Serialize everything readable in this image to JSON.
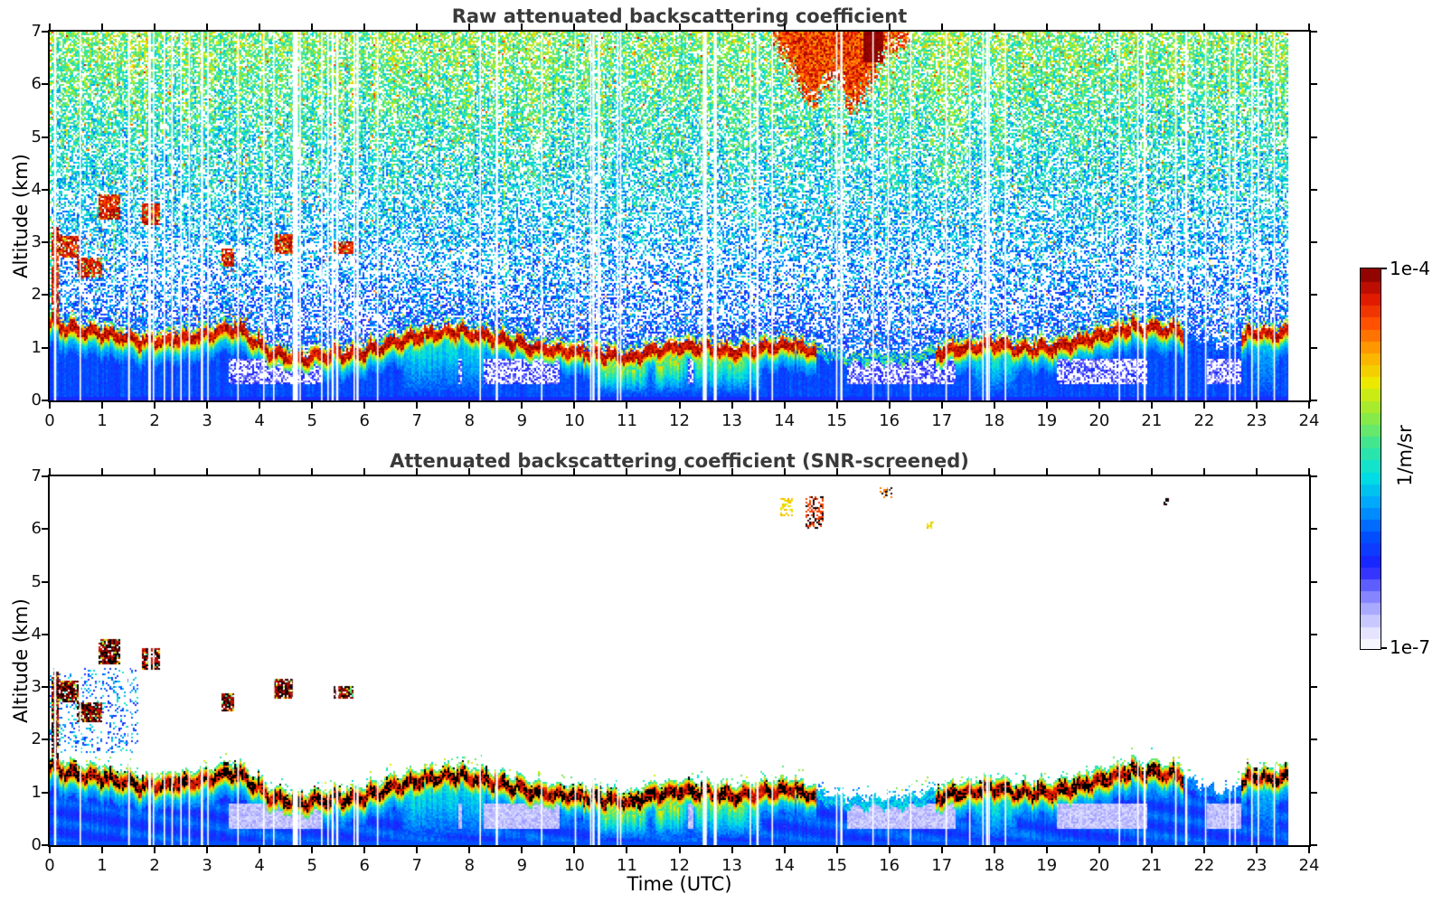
{
  "figure": {
    "background": "#ffffff",
    "title_color": "#3a3a3a",
    "axis_color": "#000000"
  },
  "colorbar": {
    "label": "1/m/sr",
    "tick_top": "1e-4",
    "tick_bottom": "1e-7",
    "n_steps": 32,
    "scale": "log",
    "colormap_stops": [
      [
        0.0,
        "#ffffff"
      ],
      [
        0.05,
        "#e2e2ff"
      ],
      [
        0.1,
        "#b4b4ff"
      ],
      [
        0.16,
        "#6e6eff"
      ],
      [
        0.22,
        "#1e1eff"
      ],
      [
        0.3,
        "#0050ff"
      ],
      [
        0.38,
        "#00a0ff"
      ],
      [
        0.46,
        "#00e1e1"
      ],
      [
        0.54,
        "#3ce696"
      ],
      [
        0.62,
        "#91eb3c"
      ],
      [
        0.7,
        "#ebeb00"
      ],
      [
        0.78,
        "#ffaa00"
      ],
      [
        0.86,
        "#ff5000"
      ],
      [
        0.93,
        "#dc1400"
      ],
      [
        1.0,
        "#7d0000"
      ]
    ]
  },
  "chart_data": [
    {
      "type": "heatmap",
      "title": "Raw attenuated backscattering coefficient",
      "ylabel": "Altitude (km)",
      "xlabel": "",
      "xlim": [
        0,
        24
      ],
      "ylim": [
        0,
        7
      ],
      "x_ticks": [
        0,
        1,
        2,
        3,
        4,
        5,
        6,
        7,
        8,
        9,
        10,
        11,
        12,
        13,
        14,
        15,
        16,
        17,
        18,
        19,
        20,
        21,
        22,
        23,
        24
      ],
      "y_ticks": [
        0,
        1,
        2,
        3,
        4,
        5,
        6,
        7
      ],
      "value_min": "1e-7",
      "value_max": "1e-4",
      "units": "1/m/sr",
      "screened": false,
      "data_ends_at_utc": 23.62
    },
    {
      "type": "heatmap",
      "title": "Attenuated backscattering coefficient (SNR-screened)",
      "ylabel": "Altitude (km)",
      "xlabel": "Time (UTC)",
      "xlim": [
        0,
        24
      ],
      "ylim": [
        0,
        7
      ],
      "x_ticks": [
        0,
        1,
        2,
        3,
        4,
        5,
        6,
        7,
        8,
        9,
        10,
        11,
        12,
        13,
        14,
        15,
        16,
        17,
        18,
        19,
        20,
        21,
        22,
        23,
        24
      ],
      "y_ticks": [
        0,
        1,
        2,
        3,
        4,
        5,
        6,
        7
      ],
      "value_min": "1e-7",
      "value_max": "1e-4",
      "units": "1/m/sr",
      "screened": true,
      "data_ends_at_utc": 23.62
    }
  ],
  "scene": {
    "t_end_utc": 23.62,
    "boundary_layer_height_km": [
      [
        0,
        1.5
      ],
      [
        0.3,
        1.35
      ],
      [
        0.8,
        1.28
      ],
      [
        1.2,
        1.22
      ],
      [
        1.7,
        1.12
      ],
      [
        2.1,
        1.1
      ],
      [
        2.6,
        1.16
      ],
      [
        3.0,
        1.22
      ],
      [
        3.35,
        1.34
      ],
      [
        3.7,
        1.28
      ],
      [
        4.0,
        1.0
      ],
      [
        4.3,
        0.85
      ],
      [
        4.8,
        0.8
      ],
      [
        5.4,
        0.82
      ],
      [
        6.0,
        0.9
      ],
      [
        6.6,
        1.08
      ],
      [
        7.1,
        1.22
      ],
      [
        7.6,
        1.3
      ],
      [
        8.1,
        1.24
      ],
      [
        8.6,
        1.14
      ],
      [
        9.1,
        1.02
      ],
      [
        9.6,
        0.95
      ],
      [
        10.1,
        0.9
      ],
      [
        10.6,
        0.84
      ],
      [
        11.1,
        0.8
      ],
      [
        11.6,
        0.95
      ],
      [
        12.1,
        1.0
      ],
      [
        12.6,
        0.95
      ],
      [
        13.1,
        0.9
      ],
      [
        13.6,
        1.0
      ],
      [
        14.1,
        1.04
      ],
      [
        14.6,
        0.92
      ],
      [
        15.1,
        0.82
      ],
      [
        15.6,
        0.8
      ],
      [
        16.1,
        0.8
      ],
      [
        16.6,
        0.86
      ],
      [
        17.1,
        0.92
      ],
      [
        17.6,
        1.0
      ],
      [
        18.1,
        1.05
      ],
      [
        18.6,
        0.96
      ],
      [
        19.1,
        1.0
      ],
      [
        19.6,
        1.1
      ],
      [
        20.1,
        1.22
      ],
      [
        20.5,
        1.35
      ],
      [
        21.0,
        1.36
      ],
      [
        21.5,
        1.3
      ],
      [
        22.0,
        0.98
      ],
      [
        22.5,
        0.92
      ],
      [
        22.9,
        1.3
      ],
      [
        23.3,
        1.22
      ],
      [
        23.62,
        1.28
      ]
    ],
    "cap_gaps": [
      [
        14.6,
        16.9,
        0.25
      ],
      [
        21.62,
        22.72,
        0.05
      ]
    ],
    "aerosol_layers": [
      {
        "t": [
          0.02,
          0.18
        ],
        "z": [
          1.6,
          3.3
        ],
        "intensity": 1.0
      },
      {
        "t": [
          0.18,
          0.55
        ],
        "z": [
          2.7,
          3.12
        ],
        "intensity": 1.0
      },
      {
        "t": [
          0.5,
          1.0
        ],
        "z": [
          2.32,
          2.72
        ],
        "intensity": 0.95
      },
      {
        "t": [
          0.92,
          1.35
        ],
        "z": [
          3.42,
          3.9
        ],
        "intensity": 0.95
      },
      {
        "t": [
          1.75,
          2.1
        ],
        "z": [
          3.32,
          3.75
        ],
        "intensity": 1.0
      },
      {
        "t": [
          3.28,
          3.52
        ],
        "z": [
          2.55,
          2.88
        ],
        "intensity": 0.85
      },
      {
        "t": [
          4.28,
          4.68
        ],
        "z": [
          2.78,
          3.15
        ],
        "intensity": 0.9
      },
      {
        "t": [
          5.42,
          5.8
        ],
        "z": [
          2.78,
          3.02
        ],
        "intensity": 1.0
      }
    ],
    "cloud": {
      "t": [
        13.75,
        16.45
      ],
      "z_top": 7.0,
      "z_bottom_min": 5.9,
      "peaks": [
        14.55,
        15.35
      ],
      "dark_core": {
        "t": [
          15.5,
          15.9
        ],
        "z": [
          6.4,
          7.0
        ]
      }
    },
    "snr_specks": [
      {
        "t": [
          13.92,
          14.15
        ],
        "z": [
          6.25,
          6.58
        ],
        "style": "yellow"
      },
      {
        "t": [
          14.42,
          14.75
        ],
        "z": [
          6.0,
          6.62
        ],
        "style": "red-black"
      },
      {
        "t": [
          15.82,
          16.05
        ],
        "z": [
          6.58,
          6.78
        ],
        "style": "black-red"
      },
      {
        "t": [
          16.72,
          16.85
        ],
        "z": [
          6.02,
          6.14
        ],
        "style": "yellow"
      },
      {
        "t": [
          21.18,
          21.32
        ],
        "z": [
          6.4,
          6.6
        ],
        "style": "black"
      }
    ],
    "updraft_plumes": [
      [
        6.7,
        8.4,
        0.5
      ],
      [
        10.35,
        11.45,
        0.85
      ],
      [
        11.45,
        12.2,
        1.0
      ],
      [
        12.2,
        13.6,
        0.75
      ],
      [
        17.55,
        18.45,
        0.5
      ],
      [
        22.85,
        23.45,
        0.35
      ]
    ],
    "clear_air_pockets": [
      [
        3.4,
        5.2
      ],
      [
        7.4,
        9.7
      ],
      [
        12.0,
        13.3
      ],
      [
        15.2,
        17.25
      ],
      [
        19.2,
        20.9
      ],
      [
        22.05,
        22.7
      ]
    ],
    "gap_stripes": [
      [
        0.05,
        5.5,
        26
      ],
      [
        5.5,
        10.3,
        8
      ],
      [
        10.3,
        13.6,
        13
      ],
      [
        13.6,
        17.0,
        6
      ],
      [
        17.0,
        23.55,
        17
      ]
    ]
  }
}
